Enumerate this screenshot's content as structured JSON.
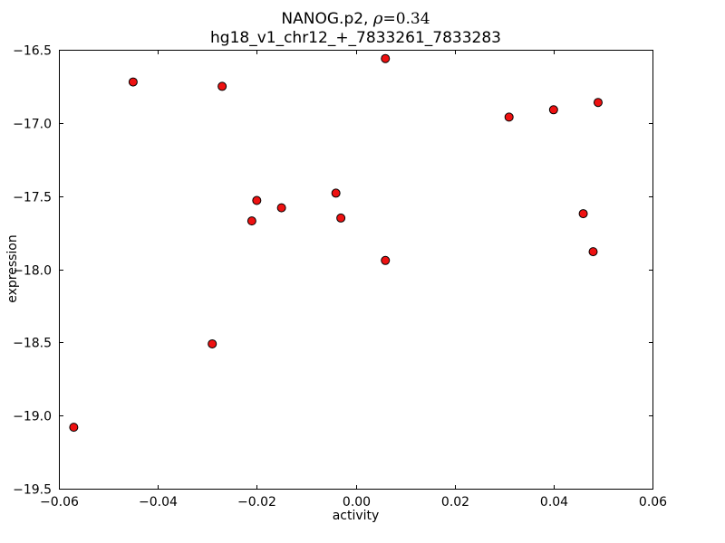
{
  "figure": {
    "title_prefix": "NANOG.p2, ",
    "title_rho": "ρ",
    "title_eq": "=0.34",
    "subtitle": "hg18_v1_chr12_+_7833261_7833283",
    "xlabel": "activity",
    "ylabel": "expression"
  },
  "chart_data": {
    "type": "scatter",
    "title": "NANOG.p2, ρ=0.34",
    "subtitle": "hg18_v1_chr12_+_7833261_7833283",
    "xlabel": "activity",
    "ylabel": "expression",
    "xlim": [
      -0.06,
      0.06
    ],
    "ylim": [
      -19.5,
      -16.5
    ],
    "xticks": [
      -0.06,
      -0.04,
      -0.02,
      0.0,
      0.02,
      0.04,
      0.06
    ],
    "xtick_labels": [
      "−0.06",
      "−0.04",
      "−0.02",
      "0.00",
      "0.02",
      "0.04",
      "0.06"
    ],
    "yticks": [
      -19.5,
      -19.0,
      -18.5,
      -18.0,
      -17.5,
      -17.0,
      -16.5
    ],
    "ytick_labels": [
      "−19.5",
      "−19.0",
      "−18.5",
      "−18.0",
      "−17.5",
      "−17.0",
      "−16.5"
    ],
    "grid": false,
    "legend": "none",
    "marker": "circle",
    "marker_color": "#ee1111",
    "marker_edge_color": "#000000",
    "points": [
      [
        -0.057,
        -19.08
      ],
      [
        -0.045,
        -16.72
      ],
      [
        -0.029,
        -18.51
      ],
      [
        -0.027,
        -16.75
      ],
      [
        -0.021,
        -17.67
      ],
      [
        -0.02,
        -17.53
      ],
      [
        -0.015,
        -17.58
      ],
      [
        -0.004,
        -17.48
      ],
      [
        -0.003,
        -17.65
      ],
      [
        0.006,
        -16.56
      ],
      [
        0.006,
        -17.94
      ],
      [
        0.031,
        -16.96
      ],
      [
        0.04,
        -16.91
      ],
      [
        0.046,
        -17.62
      ],
      [
        0.048,
        -17.88
      ],
      [
        0.049,
        -16.86
      ]
    ]
  }
}
